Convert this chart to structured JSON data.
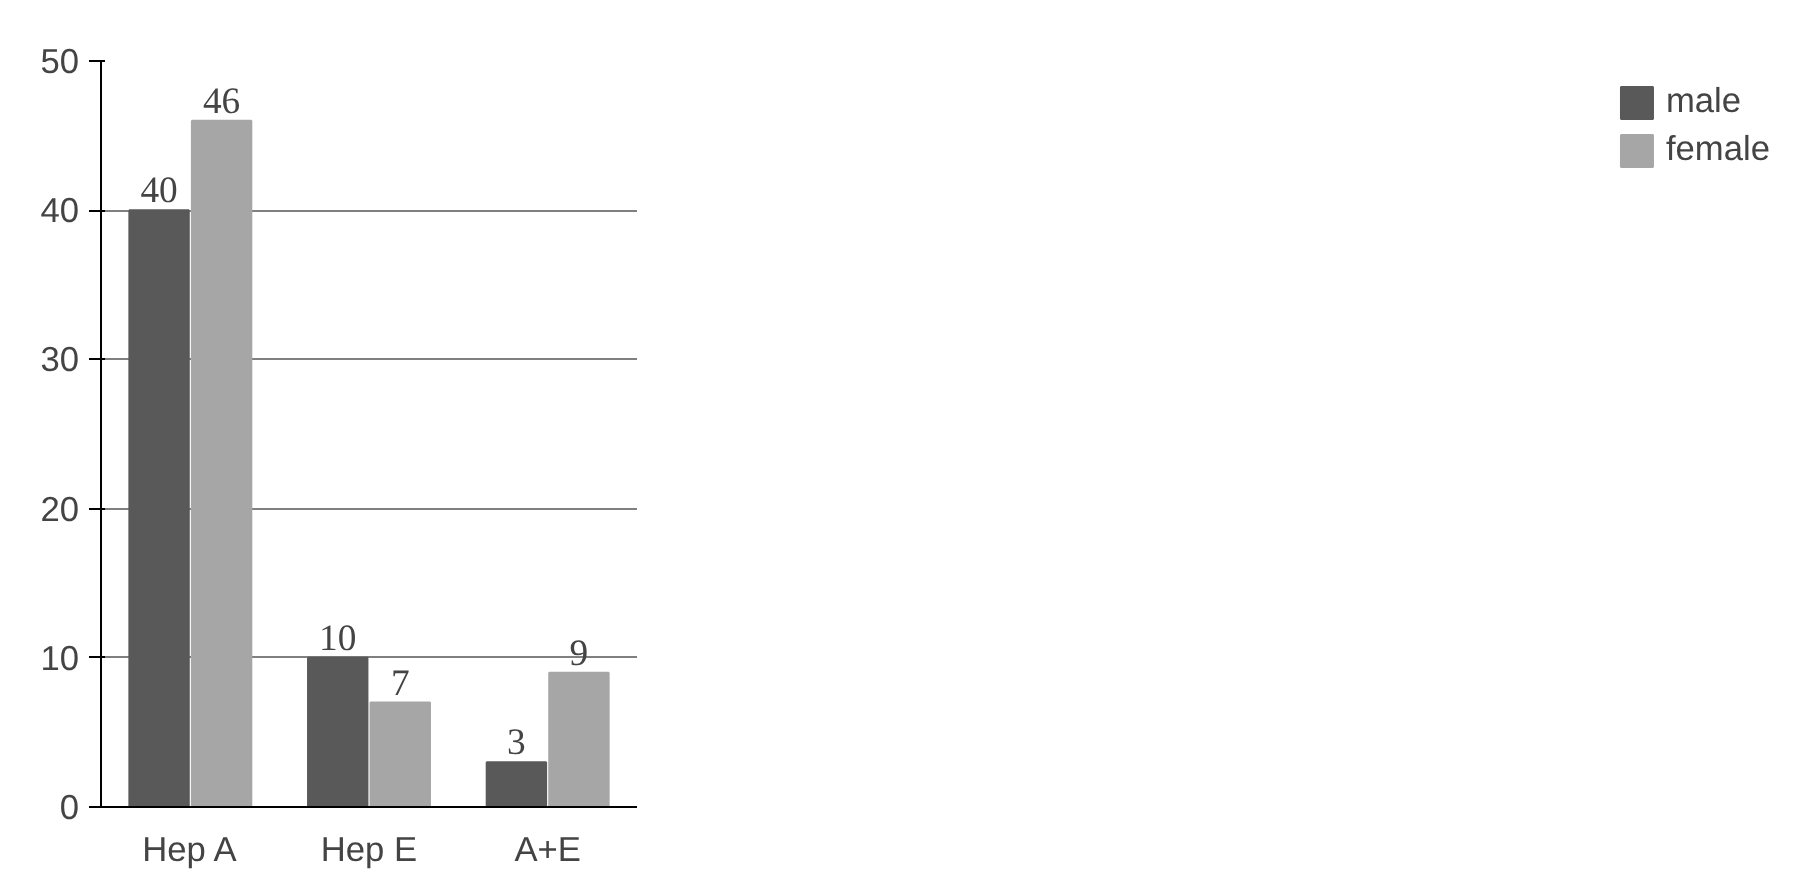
{
  "chart_data": {
    "type": "bar",
    "categories": [
      "Hep A",
      "Hep E",
      "A+E"
    ],
    "series": [
      {
        "name": "male",
        "color": "#595959",
        "values": [
          40,
          10,
          3
        ]
      },
      {
        "name": "female",
        "color": "#a6a6a6",
        "values": [
          46,
          7,
          9
        ]
      }
    ],
    "ylim": [
      0,
      50
    ],
    "yticks": [
      0,
      10,
      20,
      30,
      40,
      50
    ],
    "grid": "y",
    "legend": "right",
    "data_labels": true
  }
}
